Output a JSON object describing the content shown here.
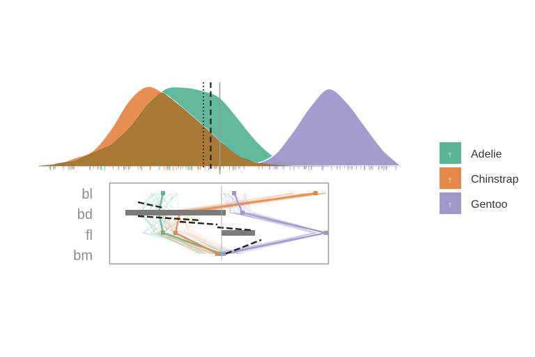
{
  "colors": {
    "Adelie": "#5ab596",
    "Chinstrap": "#e4894a",
    "Gentoo": "#9e97c9",
    "overlap": "#a97a33",
    "reference": "#7a7a7a",
    "frame": "#9a9a9a"
  },
  "chart_data": [
    {
      "type": "area",
      "title": "",
      "xlabel": "",
      "ylabel": "",
      "x_range": [
        0,
        1
      ],
      "grid": false,
      "legend": "right",
      "series": [
        {
          "name": "Adelie",
          "x": [
            0.0,
            0.1,
            0.2,
            0.25,
            0.3,
            0.35,
            0.4,
            0.45,
            0.5,
            0.55,
            0.6,
            0.65,
            0.7,
            0.75,
            0.8
          ],
          "density": [
            0.0,
            0.06,
            0.26,
            0.46,
            0.76,
            0.97,
            0.99,
            0.95,
            0.86,
            0.6,
            0.32,
            0.12,
            0.03,
            0.01,
            0.0
          ]
        },
        {
          "name": "Chinstrap",
          "x": [
            0.0,
            0.05,
            0.1,
            0.15,
            0.2,
            0.25,
            0.3,
            0.35,
            0.4,
            0.45,
            0.5,
            0.55,
            0.6,
            0.65,
            0.7,
            0.75
          ],
          "density": [
            0.0,
            0.02,
            0.1,
            0.19,
            0.46,
            0.82,
            1.0,
            0.9,
            0.72,
            0.52,
            0.31,
            0.12,
            0.04,
            0.01,
            0.0,
            0.0
          ]
        },
        {
          "name": "Gentoo",
          "x": [
            0.55,
            0.6,
            0.65,
            0.7,
            0.75,
            0.8,
            0.85,
            0.9,
            0.95,
            1.0
          ],
          "density": [
            0.0,
            0.03,
            0.14,
            0.42,
            0.75,
            0.97,
            0.8,
            0.5,
            0.2,
            0.0
          ]
        }
      ],
      "reference_lines": [
        {
          "x": 0.455,
          "style": "dotted"
        },
        {
          "x": 0.475,
          "style": "dashed"
        },
        {
          "x": 0.5,
          "style": "solid"
        }
      ]
    },
    {
      "type": "parallel",
      "title": "",
      "axes": [
        "bl",
        "bd",
        "fl",
        "bm"
      ],
      "x_range": [
        0,
        1
      ],
      "legend": "right",
      "series": [
        {
          "name": "Adelie",
          "values": [
            0.22,
            0.2,
            0.22,
            0.5
          ]
        },
        {
          "name": "Chinstrap",
          "values": [
            0.95,
            0.3,
            0.28,
            0.48
          ]
        },
        {
          "name": "Gentoo",
          "values": [
            0.56,
            0.6,
            1.0,
            0.51
          ]
        }
      ],
      "ranges": [
        {
          "axis": "bd",
          "from": 0.04,
          "to": 0.52
        },
        {
          "axis": "fl",
          "from": 0.5,
          "to": 0.66
        }
      ]
    }
  ],
  "legend": {
    "items": [
      "Adelie",
      "Chinstrap",
      "Gentoo"
    ]
  }
}
